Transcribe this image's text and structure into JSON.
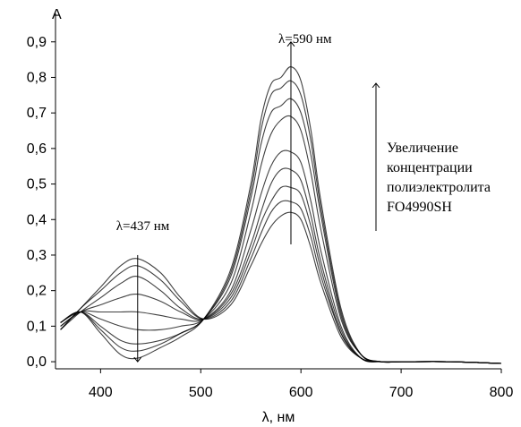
{
  "chart_data": {
    "type": "line",
    "title": "",
    "xlabel": "λ, нм",
    "ylabel": "A",
    "xlim": [
      355,
      800
    ],
    "ylim": [
      -0.02,
      0.98
    ],
    "x_ticks": [
      400,
      500,
      600,
      700,
      800
    ],
    "x_tick_labels": [
      "400",
      "500",
      "600",
      "700",
      "800"
    ],
    "y_ticks": [
      0.0,
      0.1,
      0.2,
      0.3,
      0.4,
      0.5,
      0.6,
      0.7,
      0.8,
      0.9
    ],
    "y_tick_labels": [
      "0,0",
      "0,1",
      "0,2",
      "0,3",
      "0,4",
      "0,5",
      "0,6",
      "0,7",
      "0,8",
      "0,9"
    ],
    "grid": false,
    "series_color": "#000000",
    "x": [
      360,
      380,
      400,
      420,
      437,
      460,
      480,
      503,
      530,
      550,
      560,
      570,
      580,
      590,
      600,
      610,
      620,
      640,
      660,
      680,
      700,
      750,
      800
    ],
    "series": [
      {
        "values": [
          0.09,
          0.15,
          0.21,
          0.27,
          0.29,
          0.25,
          0.18,
          0.12,
          0.16,
          0.27,
          0.33,
          0.38,
          0.41,
          0.42,
          0.4,
          0.32,
          0.22,
          0.07,
          0.01,
          0.0,
          0.0,
          0.0,
          -0.005
        ]
      },
      {
        "values": [
          0.09,
          0.15,
          0.2,
          0.25,
          0.27,
          0.23,
          0.17,
          0.12,
          0.17,
          0.29,
          0.36,
          0.42,
          0.45,
          0.45,
          0.43,
          0.35,
          0.24,
          0.08,
          0.01,
          0.0,
          0.0,
          0.0,
          -0.005
        ]
      },
      {
        "values": [
          0.09,
          0.14,
          0.18,
          0.22,
          0.24,
          0.2,
          0.15,
          0.12,
          0.18,
          0.31,
          0.39,
          0.45,
          0.49,
          0.49,
          0.47,
          0.38,
          0.26,
          0.08,
          0.01,
          0.0,
          0.0,
          0.0,
          -0.005
        ]
      },
      {
        "values": [
          0.1,
          0.14,
          0.16,
          0.18,
          0.19,
          0.17,
          0.14,
          0.12,
          0.19,
          0.33,
          0.42,
          0.5,
          0.54,
          0.54,
          0.51,
          0.41,
          0.28,
          0.09,
          0.01,
          0.0,
          0.0,
          0.0,
          -0.005
        ]
      },
      {
        "values": [
          0.1,
          0.14,
          0.14,
          0.14,
          0.14,
          0.13,
          0.12,
          0.12,
          0.2,
          0.37,
          0.47,
          0.55,
          0.59,
          0.59,
          0.56,
          0.45,
          0.31,
          0.1,
          0.01,
          0.0,
          0.0,
          0.0,
          -0.005
        ]
      },
      {
        "values": [
          0.11,
          0.14,
          0.12,
          0.1,
          0.09,
          0.09,
          0.1,
          0.12,
          0.22,
          0.42,
          0.55,
          0.64,
          0.68,
          0.69,
          0.65,
          0.53,
          0.37,
          0.12,
          0.02,
          0.0,
          0.0,
          0.0,
          -0.005
        ]
      },
      {
        "values": [
          0.11,
          0.14,
          0.1,
          0.06,
          0.05,
          0.06,
          0.08,
          0.12,
          0.24,
          0.46,
          0.61,
          0.7,
          0.72,
          0.74,
          0.7,
          0.58,
          0.41,
          0.13,
          0.02,
          0.0,
          0.0,
          0.0,
          -0.005
        ]
      },
      {
        "values": [
          0.11,
          0.14,
          0.09,
          0.04,
          0.03,
          0.05,
          0.08,
          0.12,
          0.25,
          0.48,
          0.65,
          0.75,
          0.77,
          0.79,
          0.75,
          0.62,
          0.43,
          0.14,
          0.02,
          0.0,
          0.0,
          0.0,
          -0.005
        ]
      },
      {
        "values": [
          0.11,
          0.14,
          0.08,
          0.02,
          0.01,
          0.04,
          0.07,
          0.12,
          0.26,
          0.5,
          0.68,
          0.78,
          0.8,
          0.83,
          0.79,
          0.65,
          0.45,
          0.15,
          0.02,
          0.0,
          0.0,
          0.0,
          -0.005
        ]
      }
    ],
    "annotations": [
      {
        "text": "λ=590 нм",
        "x": 590,
        "arrow_from": 0.33,
        "arrow_to": 0.9
      },
      {
        "text": "λ=437 нм",
        "x": 437,
        "arrow_from": 0.3,
        "arrow_to": 0.0
      },
      {
        "lines": [
          "Увеличение",
          "концентрации",
          "полиэлектролита",
          "FO4990SH"
        ]
      }
    ]
  }
}
